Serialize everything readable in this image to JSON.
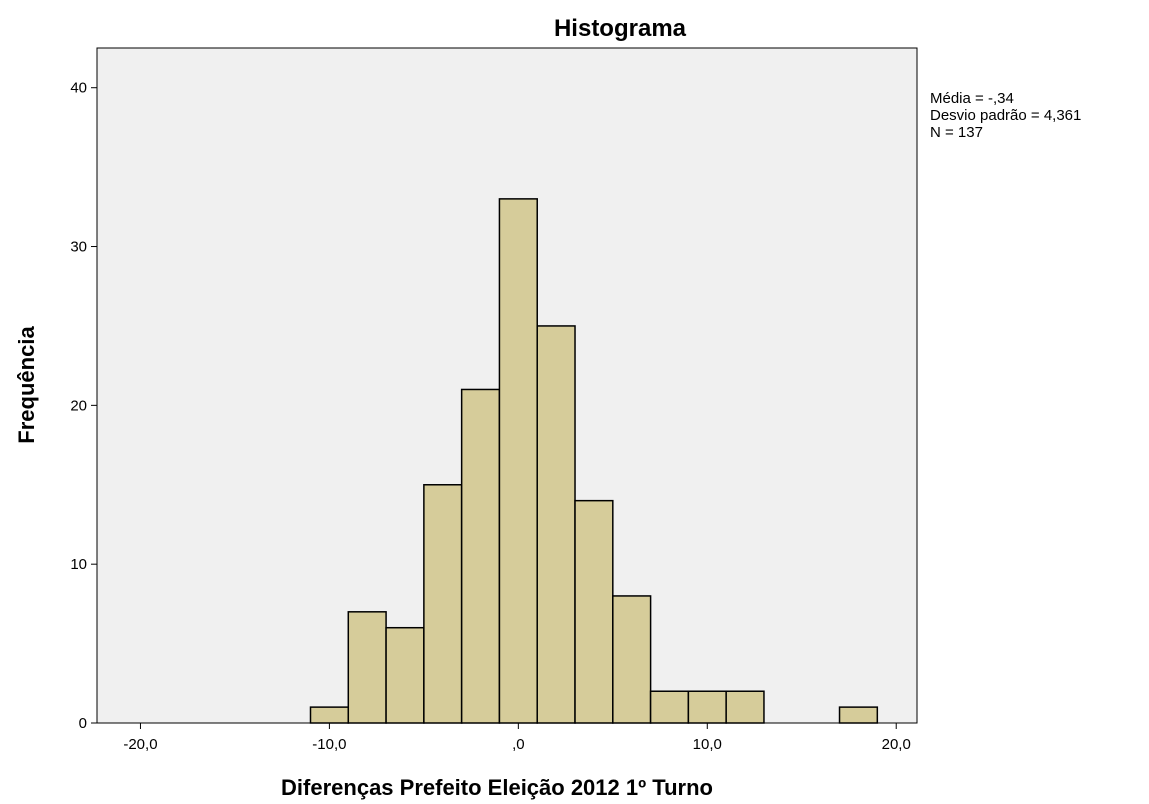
{
  "chart_data": {
    "type": "bar",
    "title": "Histograma",
    "xlabel": "Diferenças Prefeito Eleição 2012 1º Turno",
    "ylabel": "Frequência",
    "xlim": [
      -22.3,
      21.1
    ],
    "ylim": [
      0,
      42.5
    ],
    "x_ticks": [
      {
        "value": -20,
        "label": "-20,0"
      },
      {
        "value": -10,
        "label": "-10,0"
      },
      {
        "value": 0,
        "label": ",0"
      },
      {
        "value": 10,
        "label": "10,0"
      },
      {
        "value": 20,
        "label": "20,0"
      }
    ],
    "y_ticks": [
      {
        "value": 0,
        "label": "0"
      },
      {
        "value": 10,
        "label": "10"
      },
      {
        "value": 20,
        "label": "20"
      },
      {
        "value": 30,
        "label": "30"
      },
      {
        "value": 40,
        "label": "40"
      }
    ],
    "bins": [
      {
        "start": -11,
        "end": -9,
        "count": 1
      },
      {
        "start": -9,
        "end": -7,
        "count": 7
      },
      {
        "start": -7,
        "end": -5,
        "count": 6
      },
      {
        "start": -5,
        "end": -3,
        "count": 15
      },
      {
        "start": -3,
        "end": -1,
        "count": 21
      },
      {
        "start": -1,
        "end": 1,
        "count": 33
      },
      {
        "start": 1,
        "end": 3,
        "count": 25
      },
      {
        "start": 3,
        "end": 5,
        "count": 14
      },
      {
        "start": 5,
        "end": 7,
        "count": 8
      },
      {
        "start": 7,
        "end": 9,
        "count": 2
      },
      {
        "start": 9,
        "end": 11,
        "count": 2
      },
      {
        "start": 11,
        "end": 13,
        "count": 2
      },
      {
        "start": 17,
        "end": 19,
        "count": 1
      }
    ],
    "stats": {
      "mean": "Média = -,34",
      "std": "Desvio padrão = 4,361",
      "n": "N = 137"
    },
    "grid": false,
    "colors": {
      "bar_fill": "#D6CC9A",
      "bar_stroke": "#000000",
      "plot_background": "#F0F0F0"
    }
  }
}
